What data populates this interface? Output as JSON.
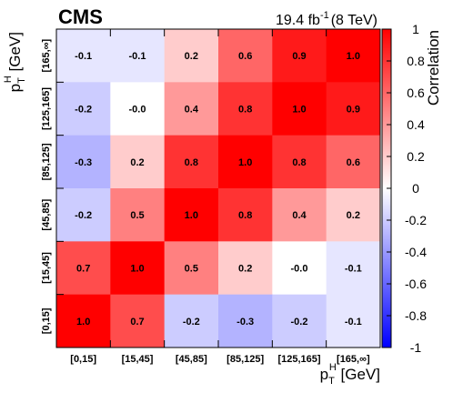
{
  "chart_data": {
    "type": "heatmap",
    "experiment_label": "CMS",
    "lumi_text": "19.4 fb",
    "lumi_sup": "-1",
    "energy_text": "(8 TeV)",
    "x_categories": [
      "[0,15]",
      "[15,45]",
      "[45,85]",
      "[85,125]",
      "[125,165]",
      "[165,∞]"
    ],
    "y_categories": [
      "[0,15]",
      "[15,45]",
      "[45,85]",
      "[85,125]",
      "[125,165]",
      "[165,∞]"
    ],
    "xlabel": {
      "main": "p",
      "sub": "T",
      "sup": "H",
      "unit": " [GeV]"
    },
    "ylabel": {
      "main": "p",
      "sub": "T",
      "sup": "H",
      "unit": " [GeV]"
    },
    "values_from_top_row": [
      [
        -0.1,
        -0.1,
        0.2,
        0.6,
        0.9,
        1.0
      ],
      [
        -0.2,
        -0.0,
        0.4,
        0.8,
        1.0,
        0.9
      ],
      [
        -0.3,
        0.2,
        0.8,
        1.0,
        0.8,
        0.6
      ],
      [
        -0.2,
        0.5,
        1.0,
        0.8,
        0.4,
        0.2
      ],
      [
        0.7,
        1.0,
        0.5,
        0.2,
        -0.0,
        -0.1
      ],
      [
        1.0,
        0.7,
        -0.2,
        -0.3,
        -0.2,
        -0.1
      ]
    ],
    "value_labels_from_top_row": [
      [
        "-0.1",
        "-0.1",
        "0.2",
        "0.6",
        "0.9",
        "1.0"
      ],
      [
        "-0.2",
        "-0.0",
        "0.4",
        "0.8",
        "1.0",
        "0.9"
      ],
      [
        "-0.3",
        "0.2",
        "0.8",
        "1.0",
        "0.8",
        "0.6"
      ],
      [
        "-0.2",
        "0.5",
        "1.0",
        "0.8",
        "0.4",
        "0.2"
      ],
      [
        "0.7",
        "1.0",
        "0.5",
        "0.2",
        "-0.0",
        "-0.1"
      ],
      [
        "1.0",
        "0.7",
        "-0.2",
        "-0.3",
        "-0.2",
        "-0.1"
      ]
    ],
    "colorbar": {
      "label": "Correlation",
      "range": [
        -1,
        1
      ],
      "ticks": [
        1,
        0.8,
        0.6,
        0.4,
        0.2,
        0,
        -0.2,
        -0.4,
        -0.6,
        -0.8,
        -1
      ],
      "tick_labels": [
        "1",
        "0.8",
        "0.6",
        "0.4",
        "0.2",
        "0",
        "-0.2",
        "-0.4",
        "-0.6",
        "-0.8",
        "-1"
      ],
      "color_negative": "#0000ff",
      "color_zero": "#ffffff",
      "color_positive": "#ff0000"
    }
  }
}
